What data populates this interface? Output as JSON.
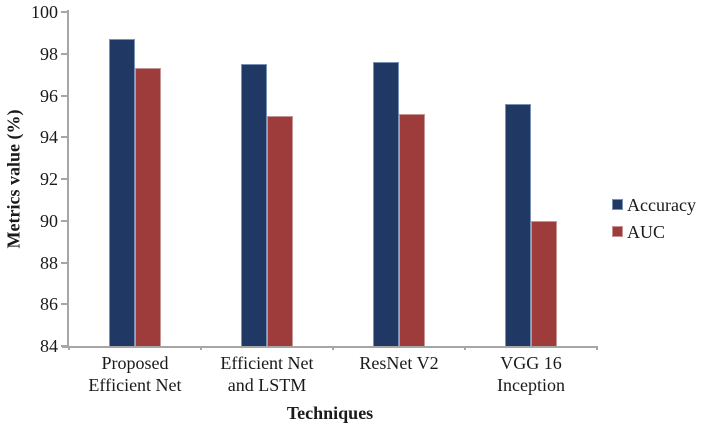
{
  "figure": {
    "background": "#FFFFFF",
    "axis_color": "#A6A6A6",
    "text_color": "#1A1A1A"
  },
  "chart_data": {
    "type": "bar",
    "title": "",
    "categories": [
      "Proposed\nEfficient Net",
      "Efficient Net\nand LSTM",
      "ResNet V2",
      "VGG 16\nInception"
    ],
    "series": [
      {
        "name": "Accuracy",
        "color": "#1F3864",
        "border_color": "#7B90B5",
        "values": [
          98.7,
          97.5,
          97.6,
          95.6
        ]
      },
      {
        "name": "AUC",
        "color": "#9E3B3B",
        "border_color": "#C59593",
        "values": [
          97.3,
          95.0,
          95.1,
          90.0
        ]
      }
    ],
    "xlabel": "Techniques",
    "ylabel": "Metrics value (%)",
    "ylim": [
      84,
      100
    ],
    "yticks": [
      84,
      86,
      88,
      90,
      92,
      94,
      96,
      98,
      100
    ],
    "grid": false,
    "legend_position": "right"
  }
}
